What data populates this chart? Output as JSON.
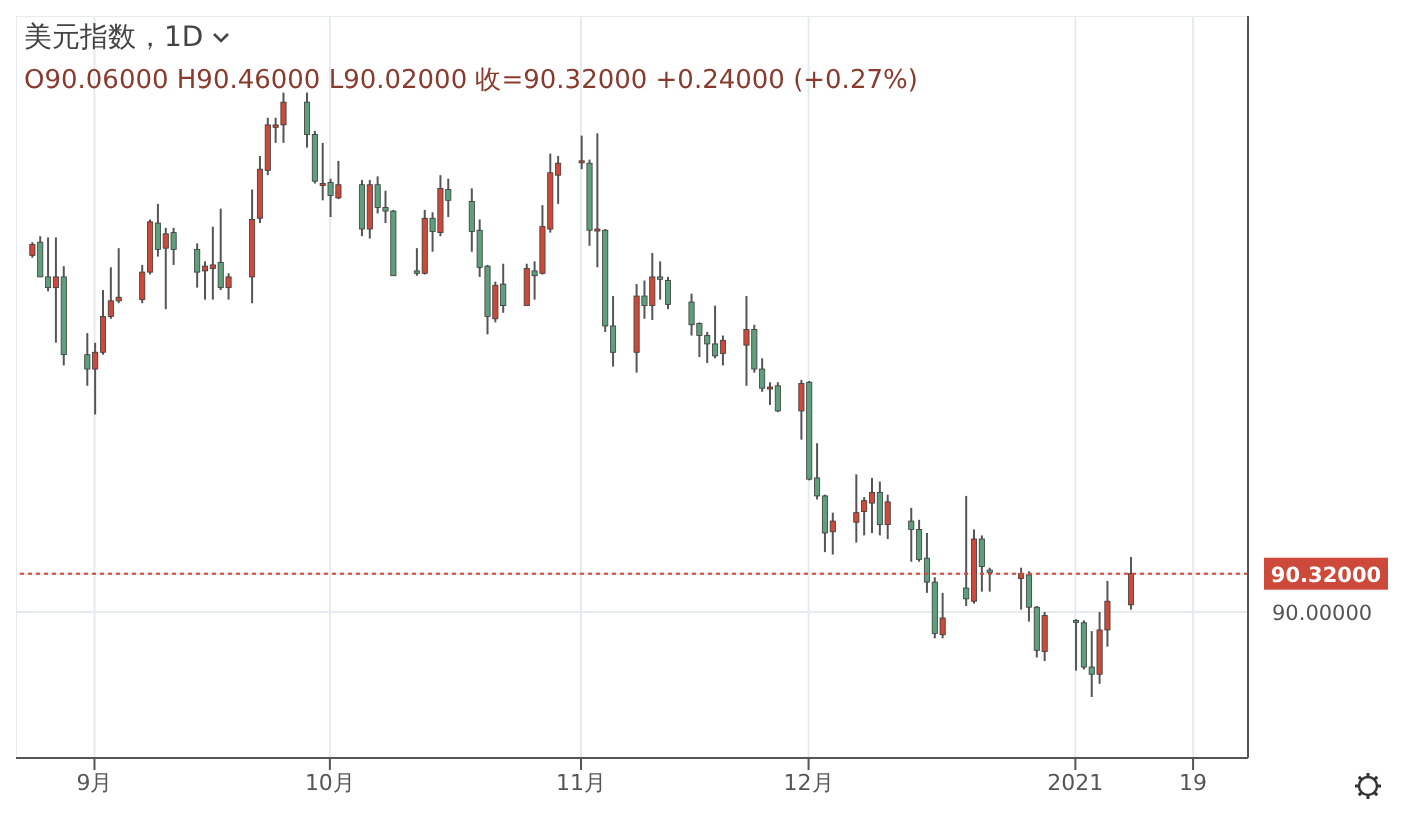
{
  "chart_data": {
    "type": "candlestick",
    "title": "美元指数，1D",
    "subtitle": "O90.06000 H90.46000 L90.02000 收=90.32000 +0.24000 (+0.27%)",
    "x": [
      "2020-08-24",
      "2020-08-25",
      "2020-08-26",
      "2020-08-27",
      "2020-08-28",
      "2020-08-31",
      "2020-09-01",
      "2020-09-02",
      "2020-09-03",
      "2020-09-04",
      "2020-09-07",
      "2020-09-08",
      "2020-09-09",
      "2020-09-10",
      "2020-09-11",
      "2020-09-14",
      "2020-09-15",
      "2020-09-16",
      "2020-09-17",
      "2020-09-18",
      "2020-09-21",
      "2020-09-22",
      "2020-09-23",
      "2020-09-24",
      "2020-09-25",
      "2020-09-28",
      "2020-09-29",
      "2020-09-30",
      "2020-10-01",
      "2020-10-02",
      "2020-10-05",
      "2020-10-06",
      "2020-10-07",
      "2020-10-08",
      "2020-10-09",
      "2020-10-12",
      "2020-10-13",
      "2020-10-14",
      "2020-10-15",
      "2020-10-16",
      "2020-10-19",
      "2020-10-20",
      "2020-10-21",
      "2020-10-22",
      "2020-10-23",
      "2020-10-26",
      "2020-10-27",
      "2020-10-28",
      "2020-10-29",
      "2020-10-30",
      "2020-11-02",
      "2020-11-03",
      "2020-11-04",
      "2020-11-05",
      "2020-11-06",
      "2020-11-09",
      "2020-11-10",
      "2020-11-11",
      "2020-11-12",
      "2020-11-13",
      "2020-11-16",
      "2020-11-17",
      "2020-11-18",
      "2020-11-19",
      "2020-11-20",
      "2020-11-23",
      "2020-11-24",
      "2020-11-25",
      "2020-11-26",
      "2020-11-27",
      "2020-11-30",
      "2020-12-01",
      "2020-12-02",
      "2020-12-03",
      "2020-12-04",
      "2020-12-07",
      "2020-12-08",
      "2020-12-09",
      "2020-12-10",
      "2020-12-11",
      "2020-12-14",
      "2020-12-15",
      "2020-12-16",
      "2020-12-17",
      "2020-12-18",
      "2020-12-21",
      "2020-12-22",
      "2020-12-23",
      "2020-12-24",
      "2020-12-28",
      "2020-12-29",
      "2020-12-30",
      "2020-12-31",
      "2021-01-04",
      "2021-01-05",
      "2021-01-06",
      "2021-01-07",
      "2021-01-08",
      "2021-01-11"
    ],
    "ohlc": [
      [
        92.98,
        93.09,
        92.96,
        93.07
      ],
      [
        93.09,
        93.14,
        92.8,
        92.8
      ],
      [
        92.8,
        93.13,
        92.68,
        92.71
      ],
      [
        92.71,
        93.13,
        92.25,
        92.8
      ],
      [
        92.8,
        92.89,
        92.06,
        92.15
      ],
      [
        92.15,
        92.33,
        91.89,
        92.03
      ],
      [
        92.03,
        92.25,
        91.65,
        92.17
      ],
      [
        92.17,
        92.69,
        92.15,
        92.47
      ],
      [
        92.47,
        92.88,
        92.45,
        92.6
      ],
      [
        92.6,
        93.04,
        92.58,
        92.63
      ],
      [
        92.61,
        92.9,
        92.58,
        92.84
      ],
      [
        92.84,
        93.28,
        92.82,
        93.26
      ],
      [
        93.25,
        93.41,
        92.97,
        93.03
      ],
      [
        93.04,
        93.21,
        92.53,
        93.16
      ],
      [
        93.17,
        93.21,
        92.9,
        93.03
      ],
      [
        93.03,
        93.08,
        92.71,
        92.84
      ],
      [
        92.85,
        92.93,
        92.61,
        92.89
      ],
      [
        92.87,
        93.22,
        92.61,
        92.9
      ],
      [
        92.92,
        93.37,
        92.69,
        92.71
      ],
      [
        92.71,
        92.83,
        92.61,
        92.8
      ],
      [
        92.8,
        93.53,
        92.58,
        93.28
      ],
      [
        93.29,
        93.81,
        93.25,
        93.7
      ],
      [
        93.69,
        94.13,
        93.65,
        94.07
      ],
      [
        94.05,
        94.13,
        93.92,
        94.07
      ],
      [
        94.07,
        94.34,
        93.92,
        94.26
      ],
      [
        94.26,
        94.34,
        93.88,
        93.99
      ],
      [
        93.99,
        94.02,
        93.58,
        93.6
      ],
      [
        93.57,
        93.92,
        93.44,
        93.58
      ],
      [
        93.59,
        93.62,
        93.3,
        93.48
      ],
      [
        93.46,
        93.77,
        93.45,
        93.57
      ],
      [
        93.57,
        93.61,
        93.14,
        93.2
      ],
      [
        93.2,
        93.61,
        93.12,
        93.57
      ],
      [
        93.57,
        93.64,
        93.33,
        93.38
      ],
      [
        93.38,
        93.52,
        93.25,
        93.35
      ],
      [
        93.35,
        93.36,
        92.81,
        92.81
      ],
      [
        92.85,
        93.04,
        92.81,
        92.83
      ],
      [
        92.83,
        93.36,
        92.82,
        93.29
      ],
      [
        93.29,
        93.34,
        93.01,
        93.18
      ],
      [
        93.17,
        93.65,
        93.14,
        93.54
      ],
      [
        93.53,
        93.62,
        93.3,
        93.44
      ],
      [
        93.43,
        93.54,
        93.01,
        93.18
      ],
      [
        93.19,
        93.28,
        92.8,
        92.88
      ],
      [
        92.89,
        92.9,
        92.32,
        92.47
      ],
      [
        92.45,
        92.76,
        92.42,
        92.73
      ],
      [
        92.74,
        92.91,
        92.5,
        92.56
      ],
      [
        92.56,
        92.91,
        92.56,
        92.87
      ],
      [
        92.85,
        92.93,
        92.61,
        92.81
      ],
      [
        92.83,
        93.4,
        92.82,
        93.22
      ],
      [
        93.2,
        93.83,
        93.17,
        93.67
      ],
      [
        93.65,
        93.81,
        93.41,
        93.75
      ],
      [
        93.76,
        93.98,
        93.7,
        93.77
      ],
      [
        93.75,
        93.78,
        93.06,
        93.19
      ],
      [
        93.19,
        94.0,
        92.88,
        93.2
      ],
      [
        93.19,
        93.2,
        92.34,
        92.39
      ],
      [
        92.39,
        92.64,
        92.05,
        92.17
      ],
      [
        92.17,
        92.74,
        92.0,
        92.64
      ],
      [
        92.64,
        92.77,
        92.45,
        92.56
      ],
      [
        92.56,
        93.0,
        92.44,
        92.8
      ],
      [
        92.8,
        92.93,
        92.61,
        92.78
      ],
      [
        92.77,
        92.8,
        92.53,
        92.57
      ],
      [
        92.59,
        92.66,
        92.31,
        92.4
      ],
      [
        92.41,
        92.42,
        92.13,
        92.31
      ],
      [
        92.31,
        92.34,
        92.08,
        92.24
      ],
      [
        92.24,
        92.56,
        92.12,
        92.14
      ],
      [
        92.16,
        92.31,
        92.06,
        92.27
      ],
      [
        92.23,
        92.64,
        91.89,
        92.36
      ],
      [
        92.36,
        92.4,
        92.0,
        92.03
      ],
      [
        92.03,
        92.12,
        91.84,
        91.87
      ],
      [
        91.87,
        91.92,
        91.73,
        91.88
      ],
      [
        91.89,
        91.92,
        91.67,
        91.68
      ],
      [
        91.68,
        91.94,
        91.44,
        91.91
      ],
      [
        91.92,
        91.93,
        91.1,
        91.11
      ],
      [
        91.12,
        91.41,
        90.94,
        90.97
      ],
      [
        90.97,
        90.98,
        90.5,
        90.66
      ],
      [
        90.67,
        90.83,
        90.48,
        90.76
      ],
      [
        90.75,
        91.15,
        90.58,
        90.83
      ],
      [
        90.84,
        90.96,
        90.64,
        90.93
      ],
      [
        90.91,
        91.12,
        90.66,
        91.0
      ],
      [
        91.0,
        91.09,
        90.64,
        90.73
      ],
      [
        90.73,
        90.98,
        90.61,
        90.92
      ],
      [
        90.76,
        90.87,
        90.42,
        90.69
      ],
      [
        90.69,
        90.77,
        90.42,
        90.44
      ],
      [
        90.45,
        90.66,
        90.16,
        90.25
      ],
      [
        90.25,
        90.29,
        89.78,
        89.82
      ],
      [
        89.81,
        90.16,
        89.78,
        89.95
      ],
      [
        90.2,
        90.97,
        90.05,
        90.11
      ],
      [
        90.09,
        90.69,
        90.07,
        90.61
      ],
      [
        90.61,
        90.64,
        90.17,
        90.38
      ],
      [
        90.35,
        90.37,
        90.17,
        90.33
      ],
      [
        90.28,
        90.37,
        90.02,
        90.32
      ],
      [
        90.31,
        90.34,
        89.92,
        90.04
      ],
      [
        90.04,
        90.05,
        89.62,
        89.68
      ],
      [
        89.67,
        90.0,
        89.59,
        89.97
      ],
      [
        89.93,
        89.94,
        89.51,
        89.92
      ],
      [
        89.91,
        89.93,
        89.52,
        89.54
      ],
      [
        89.54,
        89.84,
        89.29,
        89.48
      ],
      [
        89.48,
        90.0,
        89.4,
        89.85
      ],
      [
        89.85,
        90.26,
        89.71,
        90.09
      ],
      [
        90.06,
        90.46,
        90.02,
        90.32
      ]
    ],
    "colors": [
      "#cd4a3a",
      "#5e9f7c",
      "#5e9f7c",
      "#cd4a3a",
      "#5e9f7c",
      "#5e9f7c",
      "#cd4a3a",
      "#cd4a3a",
      "#cd4a3a",
      "#cd4a3a",
      "#cd4a3a",
      "#cd4a3a",
      "#5e9f7c",
      "#cd4a3a",
      "#5e9f7c",
      "#5e9f7c",
      "#cd4a3a",
      "#cd4a3a",
      "#5e9f7c",
      "#cd4a3a",
      "#cd4a3a",
      "#cd4a3a",
      "#cd4a3a",
      "#cd4a3a",
      "#cd4a3a",
      "#5e9f7c",
      "#5e9f7c",
      "#cd4a3a",
      "#5e9f7c",
      "#cd4a3a",
      "#5e9f7c",
      "#cd4a3a",
      "#5e9f7c",
      "#5e9f7c",
      "#5e9f7c",
      "#5e9f7c",
      "#cd4a3a",
      "#5e9f7c",
      "#cd4a3a",
      "#5e9f7c",
      "#5e9f7c",
      "#5e9f7c",
      "#5e9f7c",
      "#cd4a3a",
      "#5e9f7c",
      "#cd4a3a",
      "#5e9f7c",
      "#cd4a3a",
      "#cd4a3a",
      "#cd4a3a",
      "#cd4a3a",
      "#5e9f7c",
      "#cd4a3a",
      "#5e9f7c",
      "#5e9f7c",
      "#cd4a3a",
      "#5e9f7c",
      "#cd4a3a",
      "#5e9f7c",
      "#5e9f7c",
      "#5e9f7c",
      "#5e9f7c",
      "#5e9f7c",
      "#5e9f7c",
      "#cd4a3a",
      "#cd4a3a",
      "#5e9f7c",
      "#5e9f7c",
      "#cd4a3a",
      "#5e9f7c",
      "#cd4a3a",
      "#5e9f7c",
      "#5e9f7c",
      "#5e9f7c",
      "#cd4a3a",
      "#cd4a3a",
      "#cd4a3a",
      "#cd4a3a",
      "#5e9f7c",
      "#cd4a3a",
      "#5e9f7c",
      "#5e9f7c",
      "#5e9f7c",
      "#5e9f7c",
      "#cd4a3a",
      "#5e9f7c",
      "#cd4a3a",
      "#5e9f7c",
      "#5e9f7c",
      "#cd4a3a",
      "#5e9f7c",
      "#5e9f7c",
      "#cd4a3a",
      "#5e9f7c",
      "#5e9f7c",
      "#5e9f7c",
      "#cd4a3a",
      "#cd4a3a",
      "#cd4a3a"
    ],
    "xlim": [
      "2020-08-22",
      "2021-01-26"
    ],
    "xticks": [
      {
        "value": "2020-09-01",
        "label": "9月"
      },
      {
        "value": "2020-10-01",
        "label": "10月"
      },
      {
        "value": "2020-11-02",
        "label": "11月"
      },
      {
        "value": "2020-12-01",
        "label": "12月"
      },
      {
        "value": "2021-01-04",
        "label": "2021"
      },
      {
        "value": "2021-01-19",
        "label": "19"
      }
    ],
    "ylim": [
      88.78,
      94.98
    ],
    "yticks": [
      {
        "value": 90,
        "label": "90.00000"
      },
      {
        "value": 90.32,
        "label": "90.32000"
      }
    ],
    "ref_lines": [
      {
        "axis": "y",
        "value": 90.32,
        "color": "#cd4a3a",
        "line_style": "dotted"
      }
    ],
    "grid": true
  }
}
